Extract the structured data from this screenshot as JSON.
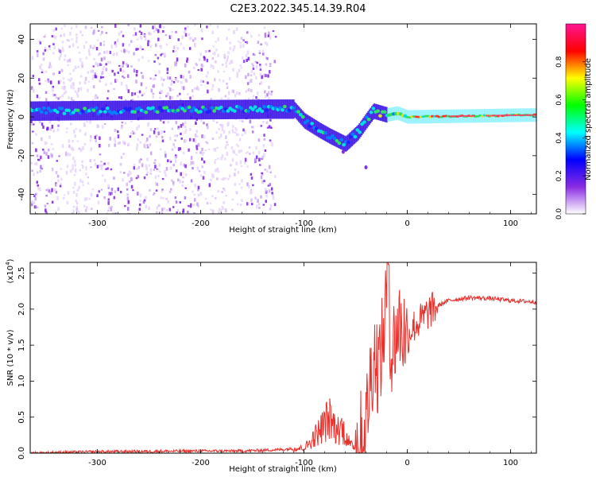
{
  "title": "C2E3.2022.345.14.39.R04",
  "colors": {
    "snr_line": "#e8312c",
    "background": "#ffffff"
  },
  "chart_data": [
    {
      "type": "heatmap",
      "name": "spectrogram",
      "xlabel": "Height of straight line (km)",
      "ylabel": "Frequency (Hz)",
      "xlim": [
        -365,
        125
      ],
      "ylim": [
        -50,
        48
      ],
      "xticks": [
        -300,
        -200,
        -100,
        0,
        100
      ],
      "yticks": [
        -40,
        -20,
        0,
        20,
        40
      ],
      "colorbar": {
        "label": "Normalized spectral amplitude",
        "range": [
          0,
          1
        ],
        "ticks": [
          "0.0",
          "0.2",
          "0.4",
          "0.6",
          "0.8"
        ],
        "colormap": [
          "#ffffff",
          "#8a2be2",
          "#0000ff",
          "#00ffff",
          "#00ff00",
          "#ffff00",
          "#ff0000",
          "#ff1493"
        ]
      },
      "trace": [
        {
          "x": -365,
          "f": 3
        },
        {
          "x": -130,
          "f": 4
        },
        {
          "x": -110,
          "f": 4
        },
        {
          "x": -100,
          "f": -2
        },
        {
          "x": -85,
          "f": -7
        },
        {
          "x": -75,
          "f": -10
        },
        {
          "x": -60,
          "f": -14
        },
        {
          "x": -48,
          "f": -8
        },
        {
          "x": -40,
          "f": -2
        },
        {
          "x": -33,
          "f": 3
        },
        {
          "x": -20,
          "f": 1
        },
        {
          "x": -10,
          "f": 2
        },
        {
          "x": 0,
          "f": 0
        },
        {
          "x": 125,
          "f": 1
        }
      ]
    },
    {
      "type": "line",
      "name": "snr",
      "xlabel": "Height of straight line (km)",
      "ylabel": "SNR (10 * v/v)",
      "y_multiplier": "(x10",
      "y_multiplier_exp": "4",
      "y_multiplier_close": ")",
      "xlim": [
        -365,
        125
      ],
      "ylim": [
        0,
        2.65
      ],
      "xticks": [
        -300,
        -200,
        -100,
        0,
        100
      ],
      "yticks": [
        "0.0",
        "0.5",
        "1.0",
        "1.5",
        "2.0",
        "2.5"
      ],
      "series": [
        {
          "x": [
            -365,
            -300,
            -200,
            -160,
            -120,
            -100,
            -95,
            -90,
            -85,
            -80,
            -76,
            -72,
            -68,
            -64,
            -60,
            -55,
            -50,
            -45,
            -40,
            -36,
            -32,
            -28,
            -24,
            -20,
            -18,
            -16,
            -12,
            -8,
            -4,
            0,
            5,
            10,
            20,
            30,
            40,
            60,
            80,
            100,
            125
          ],
          "y": [
            0.0,
            0.02,
            0.03,
            0.03,
            0.05,
            0.08,
            0.15,
            0.25,
            0.35,
            0.45,
            0.55,
            0.45,
            0.35,
            0.4,
            0.3,
            0.12,
            0.1,
            0.2,
            0.4,
            1.0,
            1.4,
            1.2,
            1.5,
            2.2,
            2.62,
            1.3,
            1.6,
            1.8,
            1.7,
            1.6,
            1.75,
            1.8,
            1.95,
            2.05,
            2.12,
            2.16,
            2.15,
            2.12,
            2.1
          ]
        }
      ]
    }
  ]
}
